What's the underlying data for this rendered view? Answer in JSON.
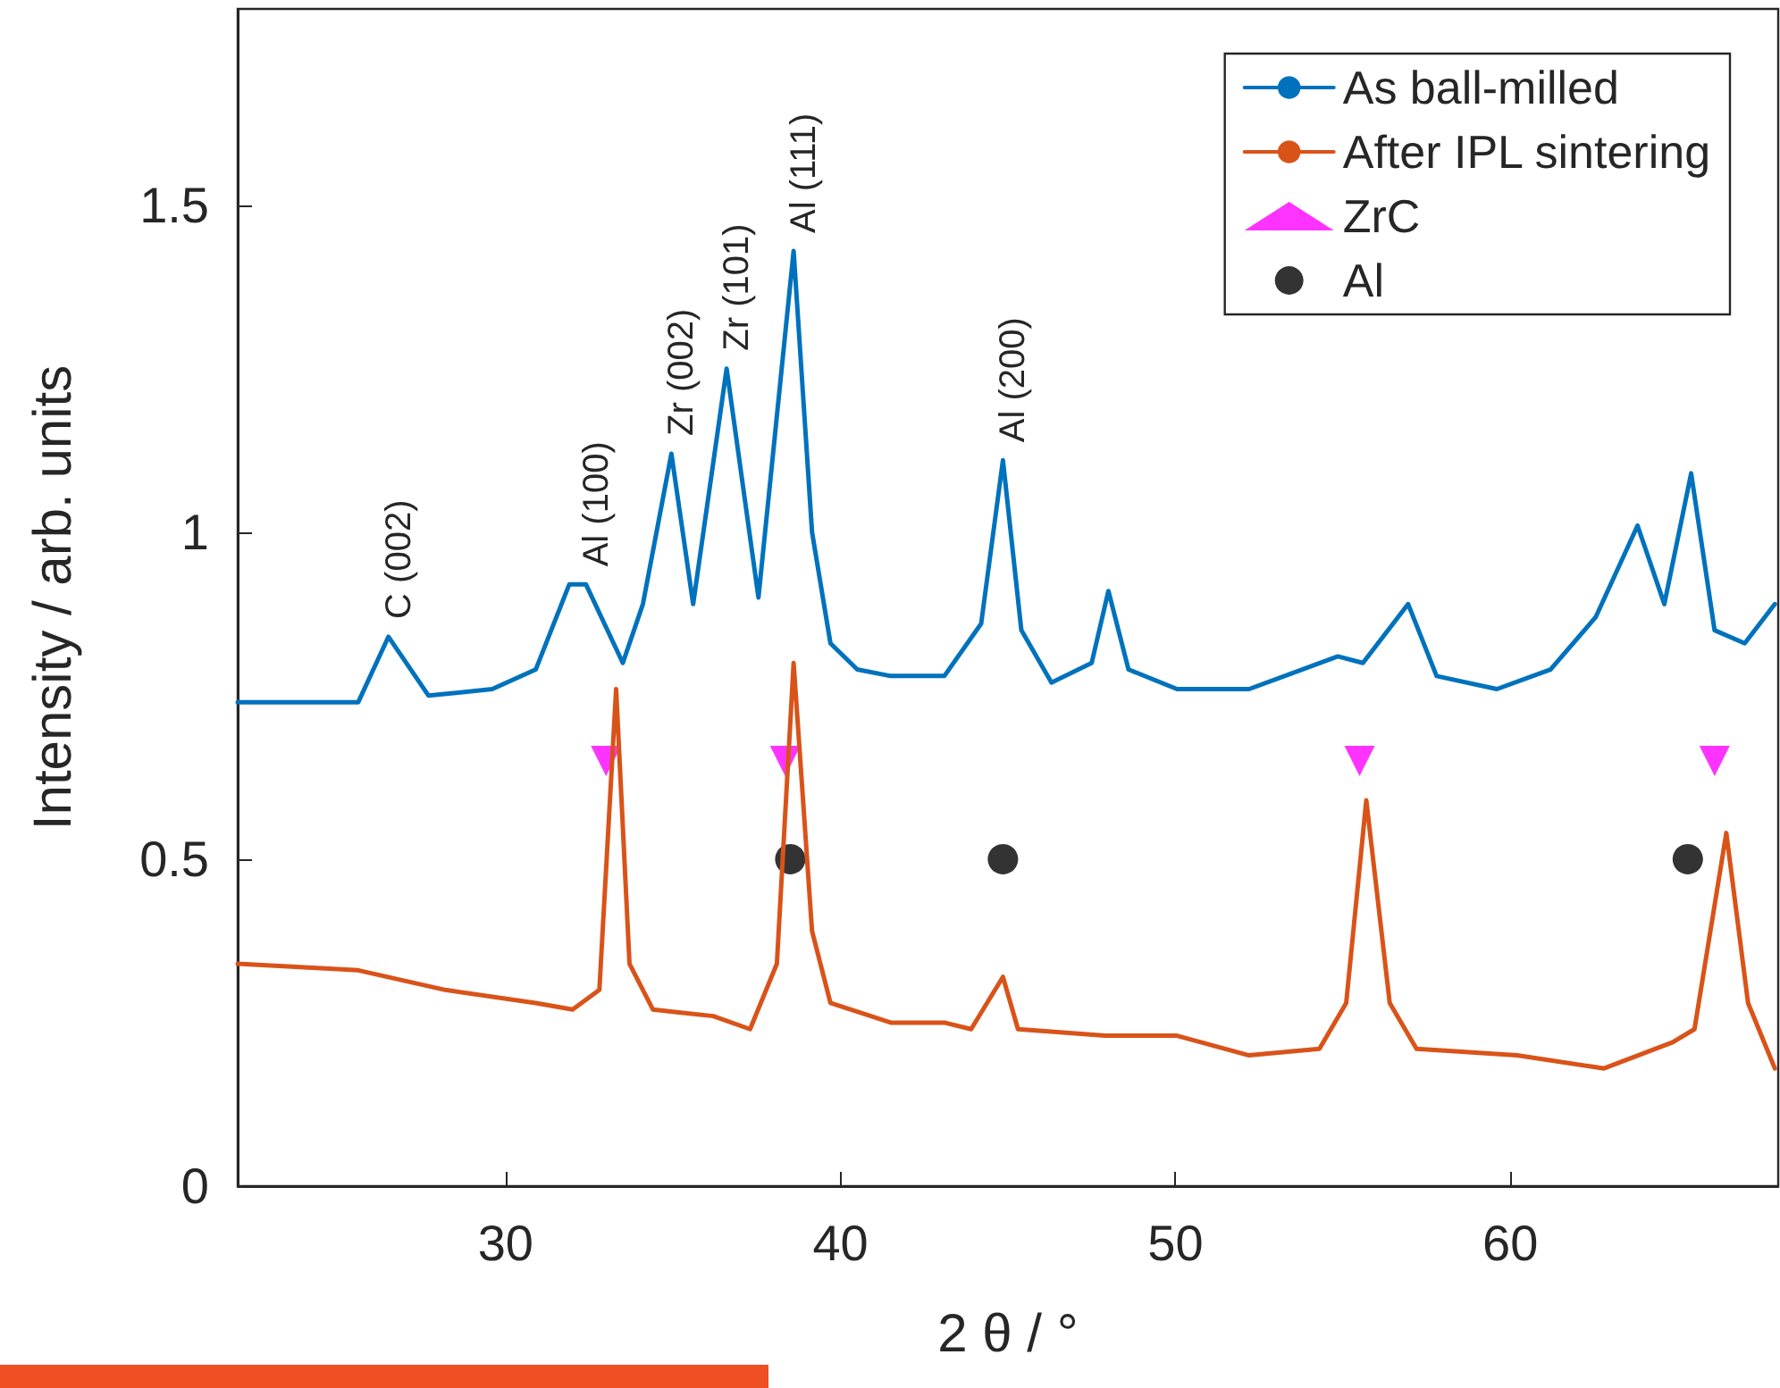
{
  "chart_data": {
    "type": "line",
    "xlabel": "2 θ / °",
    "ylabel": "Intensity / arb. units",
    "xlim": [
      22,
      68
    ],
    "xticks": [
      30,
      40,
      50,
      60
    ],
    "ylim": [
      0,
      1.8
    ],
    "yticks": [
      0,
      0.5,
      1,
      1.5
    ],
    "grid": false,
    "legend": "top right",
    "line_style": "solid",
    "marker": "none",
    "series": [
      {
        "name": "As ball-milled",
        "color": "#0072bd",
        "x": [
          22,
          25.6,
          26.5,
          27.7,
          29.6,
          30.9,
          31.9,
          32.4,
          33.5,
          34.1,
          34.95,
          35.6,
          36.6,
          37.55,
          38.6,
          39.15,
          39.7,
          40.5,
          41.5,
          43.1,
          44.2,
          44.85,
          45.4,
          46.3,
          47.5,
          48.0,
          48.6,
          50.05,
          52.2,
          54.85,
          55.6,
          56.95,
          57.8,
          59.6,
          61.2,
          62.55,
          63.8,
          64.6,
          65.4,
          66.1,
          67.0,
          67.9
        ],
        "values": [
          0.74,
          0.74,
          0.84,
          0.75,
          0.76,
          0.79,
          0.92,
          0.92,
          0.8,
          0.89,
          1.12,
          0.89,
          1.25,
          0.9,
          1.43,
          1.0,
          0.83,
          0.79,
          0.78,
          0.78,
          0.86,
          1.11,
          0.85,
          0.77,
          0.8,
          0.91,
          0.79,
          0.76,
          0.76,
          0.81,
          0.8,
          0.89,
          0.78,
          0.76,
          0.79,
          0.87,
          1.01,
          0.89,
          1.09,
          0.85,
          0.83,
          0.89
        ]
      },
      {
        "name": "After IPL sintering",
        "color": "#d95319",
        "x": [
          22,
          25.6,
          28.2,
          30.9,
          32.0,
          32.8,
          33.3,
          33.7,
          34.4,
          36.2,
          37.3,
          38.1,
          38.6,
          39.15,
          39.7,
          41.5,
          43.1,
          43.9,
          44.85,
          45.3,
          47.9,
          50.05,
          52.2,
          54.3,
          55.1,
          55.7,
          56.4,
          57.2,
          60.2,
          62.8,
          64.85,
          65.5,
          66.45,
          67.1,
          67.9
        ],
        "values": [
          0.34,
          0.33,
          0.3,
          0.28,
          0.27,
          0.3,
          0.76,
          0.34,
          0.27,
          0.26,
          0.24,
          0.34,
          0.8,
          0.39,
          0.28,
          0.25,
          0.25,
          0.24,
          0.32,
          0.24,
          0.23,
          0.23,
          0.2,
          0.21,
          0.28,
          0.59,
          0.28,
          0.21,
          0.2,
          0.18,
          0.22,
          0.24,
          0.54,
          0.28,
          0.18
        ]
      },
      {
        "name": "ZrC",
        "type": "scatter",
        "marker": "triangle",
        "color": "#ff00ff",
        "x": [
          33.0,
          38.35,
          55.5,
          66.1
        ],
        "values": [
          0.65,
          0.65,
          0.65,
          0.65
        ]
      },
      {
        "name": "Al",
        "type": "scatter",
        "marker": "circle",
        "color": "#000000",
        "x": [
          38.5,
          44.85,
          65.3
        ],
        "values": [
          0.5,
          0.5,
          0.5
        ]
      }
    ],
    "annotations": [
      {
        "text": "C (002)",
        "x": 26.5,
        "y": 0.84
      },
      {
        "text": "Al (100)",
        "x": 32.4,
        "y": 0.92
      },
      {
        "text": "Zr (002)",
        "x": 34.95,
        "y": 1.12
      },
      {
        "text": "Zr (101)",
        "x": 36.6,
        "y": 1.25
      },
      {
        "text": "Al (111)",
        "x": 38.6,
        "y": 1.43
      },
      {
        "text": "Al (200)",
        "x": 44.85,
        "y": 1.11
      }
    ]
  }
}
